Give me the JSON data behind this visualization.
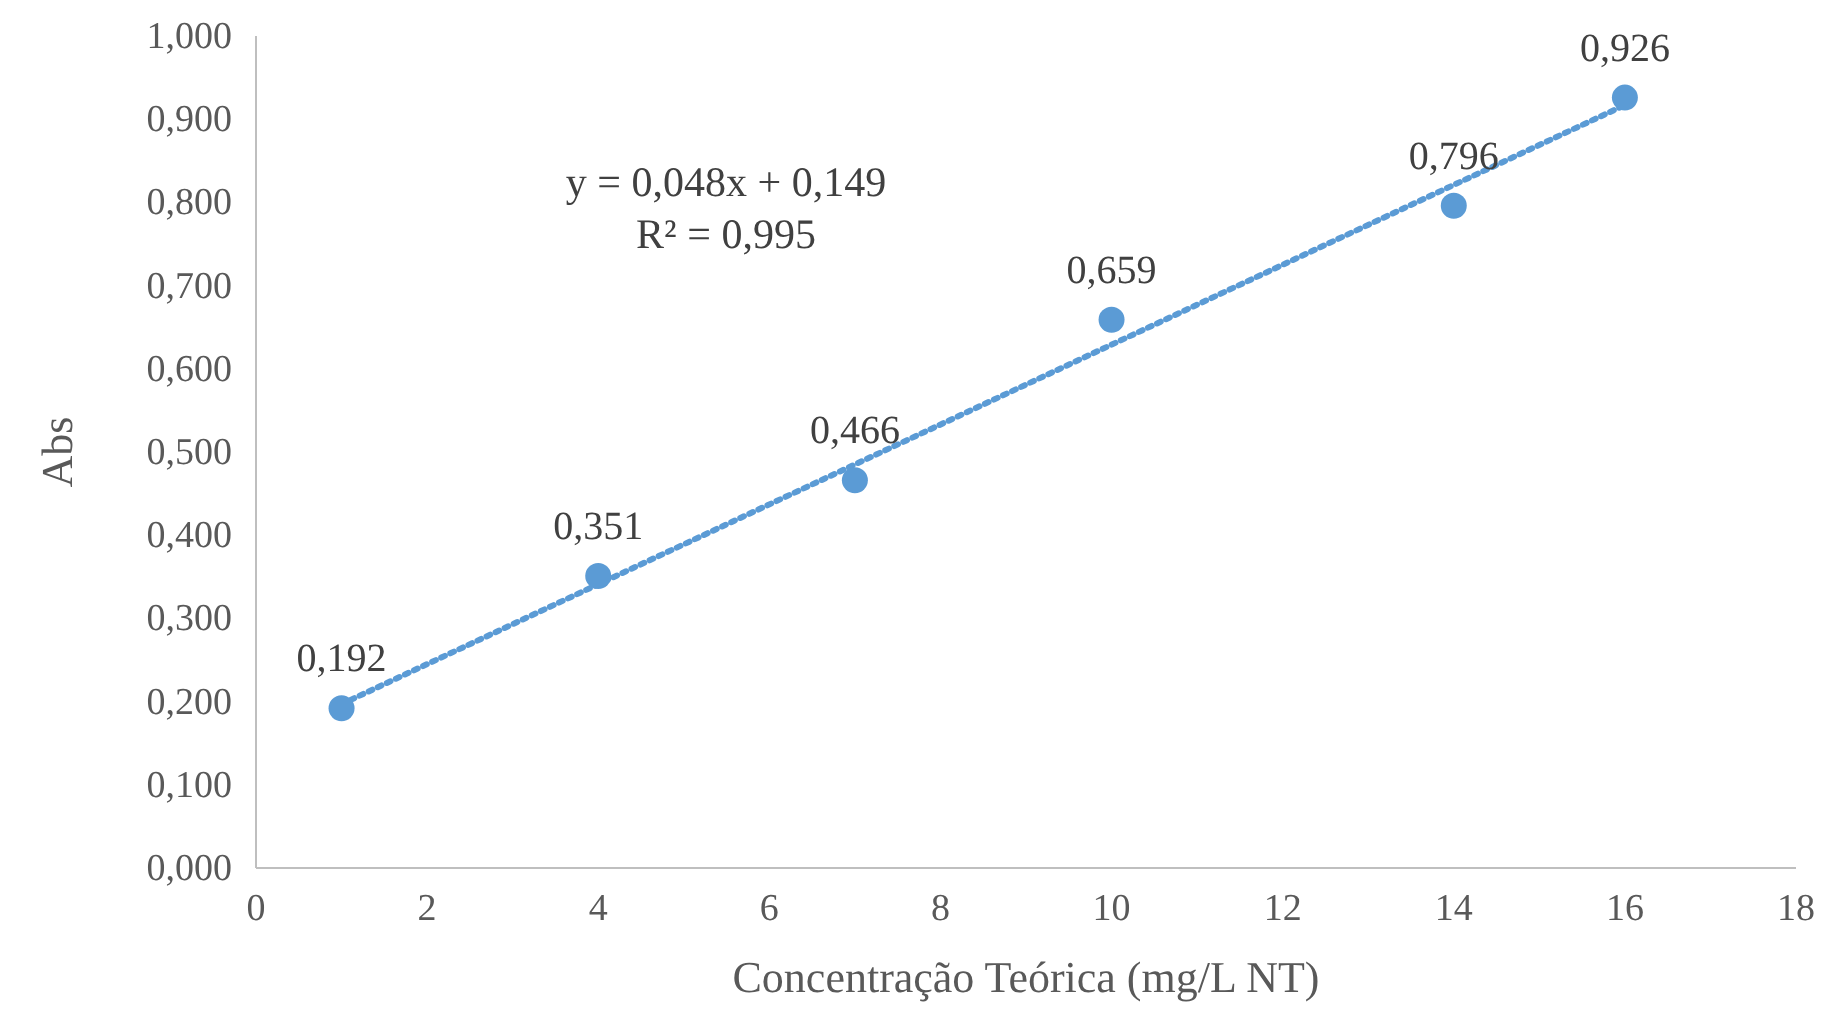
{
  "chart_data": {
    "type": "scatter",
    "xlabel": "Concentração Teórica (mg/L NT)",
    "ylabel": "Abs",
    "x": [
      1,
      4,
      7,
      10,
      14,
      16
    ],
    "series": [
      {
        "type": "scatter",
        "color": "#5b9bd5",
        "values": [
          0.192,
          0.351,
          0.466,
          0.659,
          0.796,
          0.926
        ],
        "value_labels": [
          "0,192",
          "0,351",
          "0,466",
          "0,659",
          "0,796",
          "0,926"
        ],
        "marker": "circle"
      },
      {
        "type": "line",
        "color": "#5b9bd5",
        "x": [
          1,
          16
        ],
        "values": [
          0.197,
          0.917
        ],
        "line_style": "dotted",
        "marker": "none"
      }
    ],
    "annotations": [
      "y = 0,048x + 0,149",
      "R² = 0,995"
    ],
    "xlim": [
      0,
      18
    ],
    "xticks": [
      0,
      2,
      4,
      6,
      8,
      10,
      12,
      14,
      16,
      18
    ],
    "ylim": [
      0,
      1
    ],
    "yticks": [
      {
        "value": 0,
        "label": "0,000"
      },
      {
        "value": 0.1,
        "label": "0,100"
      },
      {
        "value": 0.2,
        "label": "0,200"
      },
      {
        "value": 0.3,
        "label": "0,300"
      },
      {
        "value": 0.4,
        "label": "0,400"
      },
      {
        "value": 0.5,
        "label": "0,500"
      },
      {
        "value": 0.6,
        "label": "0,600"
      },
      {
        "value": 0.7,
        "label": "0,700"
      },
      {
        "value": 0.8,
        "label": "0,800"
      },
      {
        "value": 0.9,
        "label": "0,900"
      },
      {
        "value": 1,
        "label": "1,000"
      }
    ],
    "grid": false,
    "legend": false
  }
}
